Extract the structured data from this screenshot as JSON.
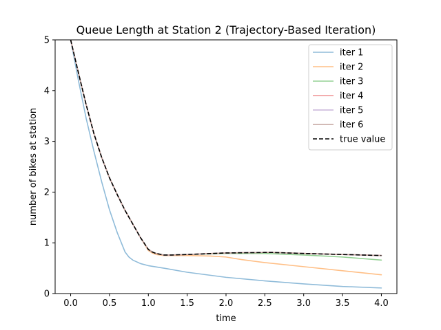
{
  "chart_data": {
    "type": "line",
    "title": "Queue Length at Station 2 (Trajectory-Based Iteration)",
    "xlabel": "time",
    "ylabel": "number of bikes at station",
    "xlim": [
      -0.2,
      4.2
    ],
    "ylim": [
      0,
      5
    ],
    "xticks": [
      "0.0",
      "0.5",
      "1.0",
      "1.5",
      "2.0",
      "2.5",
      "3.0",
      "3.5",
      "4.0"
    ],
    "yticks": [
      "0",
      "1",
      "2",
      "3",
      "4",
      "5"
    ],
    "grid": false,
    "legend_position": "top-right",
    "series": [
      {
        "name": "iter 1",
        "color": "#8fbbd9",
        "dash": "solid",
        "x": [
          0,
          0.1,
          0.2,
          0.3,
          0.4,
          0.5,
          0.6,
          0.7,
          0.75,
          0.8,
          0.9,
          1.0,
          1.2,
          1.5,
          2.0,
          2.5,
          3.0,
          3.5,
          4.0
        ],
        "y": [
          5.0,
          4.2,
          3.45,
          2.8,
          2.2,
          1.65,
          1.2,
          0.82,
          0.72,
          0.66,
          0.59,
          0.55,
          0.5,
          0.42,
          0.32,
          0.25,
          0.19,
          0.14,
          0.11
        ]
      },
      {
        "name": "iter 2",
        "color": "#ffbf86",
        "dash": "solid",
        "x": [
          0,
          0.1,
          0.2,
          0.3,
          0.4,
          0.5,
          0.6,
          0.7,
          0.8,
          0.9,
          1.0,
          1.05,
          1.1,
          1.2,
          1.3,
          1.5,
          1.8,
          2.0,
          2.2,
          2.5,
          3.0,
          3.5,
          4.0
        ],
        "y": [
          5.0,
          4.35,
          3.72,
          3.15,
          2.68,
          2.28,
          1.95,
          1.64,
          1.37,
          1.1,
          0.85,
          0.8,
          0.77,
          0.75,
          0.75,
          0.75,
          0.74,
          0.72,
          0.67,
          0.61,
          0.53,
          0.45,
          0.37
        ]
      },
      {
        "name": "iter 3",
        "color": "#93d193",
        "dash": "solid",
        "x": [
          0,
          0.1,
          0.2,
          0.3,
          0.4,
          0.5,
          0.6,
          0.7,
          0.8,
          0.9,
          1.0,
          1.05,
          1.1,
          1.2,
          1.3,
          1.5,
          2.0,
          2.5,
          3.0,
          3.5,
          4.0
        ],
        "y": [
          5.0,
          4.35,
          3.72,
          3.15,
          2.68,
          2.28,
          1.95,
          1.64,
          1.37,
          1.1,
          0.87,
          0.82,
          0.79,
          0.76,
          0.76,
          0.77,
          0.79,
          0.79,
          0.76,
          0.72,
          0.66
        ]
      },
      {
        "name": "iter 4",
        "color": "#ef9293",
        "dash": "solid",
        "x": [
          0,
          0.1,
          0.2,
          0.3,
          0.4,
          0.5,
          0.6,
          0.7,
          0.8,
          0.9,
          1.0,
          1.05,
          1.1,
          1.2,
          1.3,
          1.5,
          2.0,
          2.5,
          2.6,
          3.0,
          3.5,
          4.0
        ],
        "y": [
          5.0,
          4.35,
          3.72,
          3.15,
          2.68,
          2.28,
          1.95,
          1.64,
          1.37,
          1.1,
          0.87,
          0.82,
          0.79,
          0.76,
          0.76,
          0.77,
          0.8,
          0.81,
          0.81,
          0.79,
          0.77,
          0.75
        ]
      },
      {
        "name": "iter 5",
        "color": "#c9b3da",
        "dash": "solid",
        "x": [
          0,
          0.1,
          0.2,
          0.3,
          0.4,
          0.5,
          0.6,
          0.7,
          0.8,
          0.9,
          1.0,
          1.05,
          1.1,
          1.2,
          1.3,
          1.5,
          2.0,
          2.5,
          2.6,
          3.0,
          3.5,
          4.0
        ],
        "y": [
          5.0,
          4.35,
          3.72,
          3.15,
          2.68,
          2.28,
          1.95,
          1.64,
          1.37,
          1.1,
          0.87,
          0.82,
          0.79,
          0.76,
          0.76,
          0.77,
          0.8,
          0.81,
          0.81,
          0.79,
          0.77,
          0.75
        ]
      },
      {
        "name": "iter 6",
        "color": "#c4a49e",
        "dash": "solid",
        "x": [
          0,
          0.1,
          0.2,
          0.3,
          0.4,
          0.5,
          0.6,
          0.7,
          0.8,
          0.9,
          1.0,
          1.05,
          1.1,
          1.2,
          1.3,
          1.5,
          2.0,
          2.5,
          2.6,
          3.0,
          3.5,
          4.0
        ],
        "y": [
          5.0,
          4.35,
          3.72,
          3.15,
          2.68,
          2.28,
          1.95,
          1.64,
          1.37,
          1.1,
          0.87,
          0.82,
          0.79,
          0.76,
          0.76,
          0.77,
          0.8,
          0.81,
          0.81,
          0.79,
          0.77,
          0.75
        ]
      },
      {
        "name": "true value",
        "color": "#000000",
        "dash": "dashed",
        "x": [
          0,
          0.1,
          0.2,
          0.3,
          0.4,
          0.5,
          0.6,
          0.7,
          0.8,
          0.9,
          1.0,
          1.05,
          1.1,
          1.2,
          1.3,
          1.5,
          2.0,
          2.5,
          2.6,
          3.0,
          3.5,
          4.0
        ],
        "y": [
          5.0,
          4.35,
          3.72,
          3.15,
          2.68,
          2.28,
          1.95,
          1.64,
          1.37,
          1.1,
          0.87,
          0.82,
          0.79,
          0.76,
          0.76,
          0.77,
          0.8,
          0.81,
          0.81,
          0.79,
          0.77,
          0.75
        ]
      }
    ]
  }
}
